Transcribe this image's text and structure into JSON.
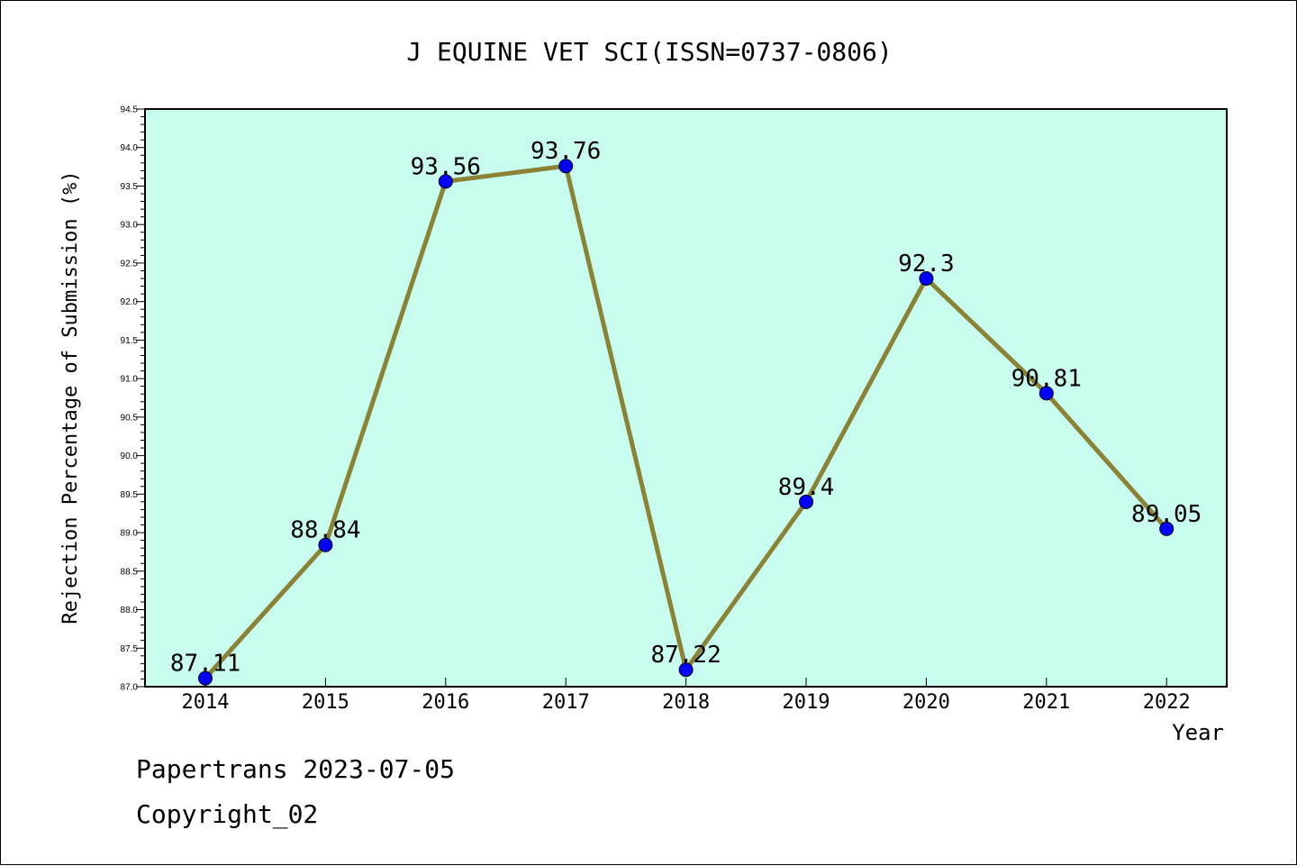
{
  "chart_data": {
    "type": "line",
    "title": "J EQUINE VET SCI(ISSN=0737-0806)",
    "xlabel": "Year",
    "ylabel": "Rejection Percentage of Submission (%)",
    "categories": [
      "2014",
      "2015",
      "2016",
      "2017",
      "2018",
      "2019",
      "2020",
      "2021",
      "2022"
    ],
    "series": [
      {
        "values": [
          87.11,
          88.84,
          93.56,
          93.76,
          87.22,
          89.4,
          92.3,
          90.81,
          89.05
        ]
      }
    ],
    "data_labels": [
      "87.11",
      "88.84",
      "93.56",
      "93.76",
      "87.22",
      "89.4",
      "92.3",
      "90.81",
      "89.05"
    ],
    "ylim": [
      87.0,
      94.5
    ],
    "yticks": [
      "87.0",
      "87.5",
      "88.0",
      "88.5",
      "89.0",
      "89.5",
      "90.0",
      "90.5",
      "91.0",
      "91.5",
      "92.0",
      "92.5",
      "93.0",
      "93.5",
      "94.0",
      "94.5"
    ],
    "grid": false,
    "legend": "none"
  },
  "colors": {
    "plot_background": "#c8fcee",
    "line": "#8c8235",
    "marker": "#0000ff"
  },
  "footer": {
    "line1": "Papertrans 2023-07-05",
    "line2": "Copyright_02"
  }
}
